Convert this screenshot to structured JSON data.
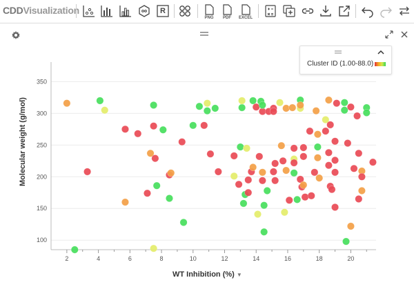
{
  "app": {
    "logo_main": "CDD",
    "logo_sub": "Visualization"
  },
  "toolbar": {
    "png_label": "PNG",
    "pdf_label": "PDF",
    "excel_label": "EXCEL",
    "r_label": "R"
  },
  "legend": {
    "text": "Cluster ID (1.00-88.0)"
  },
  "colors": {
    "red": "#e94a55",
    "orange": "#f3a046",
    "yellow": "#e4ed6a",
    "green": "#46de5c"
  },
  "chart_data": {
    "type": "scatter",
    "xlabel": "WT Inhibition (%)",
    "ylabel": "Molecular weight (g/mol)",
    "xlim": [
      1,
      21.4
    ],
    "ylim": [
      85,
      370
    ],
    "xticks": [
      2,
      4,
      6,
      8,
      10,
      12,
      14,
      16,
      18,
      20
    ],
    "yticks": [
      100,
      150,
      200,
      250,
      300,
      350
    ],
    "grid": true,
    "points": [
      {
        "x": 2.0,
        "y": 316,
        "c": "orange"
      },
      {
        "x": 2.5,
        "y": 85,
        "c": "green"
      },
      {
        "x": 3.3,
        "y": 208,
        "c": "red"
      },
      {
        "x": 4.1,
        "y": 320,
        "c": "green"
      },
      {
        "x": 4.4,
        "y": 305,
        "c": "yellow"
      },
      {
        "x": 5.7,
        "y": 275,
        "c": "red"
      },
      {
        "x": 5.7,
        "y": 160,
        "c": "orange"
      },
      {
        "x": 6.5,
        "y": 268,
        "c": "red"
      },
      {
        "x": 7.1,
        "y": 174,
        "c": "red"
      },
      {
        "x": 7.3,
        "y": 237,
        "c": "orange"
      },
      {
        "x": 7.5,
        "y": 313,
        "c": "green"
      },
      {
        "x": 7.5,
        "y": 280,
        "c": "red"
      },
      {
        "x": 7.6,
        "y": 229,
        "c": "red"
      },
      {
        "x": 7.7,
        "y": 186,
        "c": "green"
      },
      {
        "x": 7.5,
        "y": 87,
        "c": "yellow"
      },
      {
        "x": 8.1,
        "y": 274,
        "c": "green"
      },
      {
        "x": 8.5,
        "y": 203,
        "c": "red"
      },
      {
        "x": 8.6,
        "y": 206,
        "c": "orange"
      },
      {
        "x": 8.5,
        "y": 166,
        "c": "green"
      },
      {
        "x": 9.3,
        "y": 255,
        "c": "red"
      },
      {
        "x": 9.4,
        "y": 128,
        "c": "green"
      },
      {
        "x": 10.0,
        "y": 281,
        "c": "green"
      },
      {
        "x": 10.4,
        "y": 311,
        "c": "green"
      },
      {
        "x": 10.7,
        "y": 281,
        "c": "red"
      },
      {
        "x": 10.9,
        "y": 304,
        "c": "green"
      },
      {
        "x": 10.9,
        "y": 316,
        "c": "yellow"
      },
      {
        "x": 11.1,
        "y": 236,
        "c": "red"
      },
      {
        "x": 11.4,
        "y": 308,
        "c": "green"
      },
      {
        "x": 11.6,
        "y": 208,
        "c": "red"
      },
      {
        "x": 12.6,
        "y": 233,
        "c": "red"
      },
      {
        "x": 12.6,
        "y": 201,
        "c": "yellow"
      },
      {
        "x": 12.9,
        "y": 188,
        "c": "red"
      },
      {
        "x": 13.0,
        "y": 247,
        "c": "green"
      },
      {
        "x": 13.1,
        "y": 309,
        "c": "green"
      },
      {
        "x": 13.1,
        "y": 320,
        "c": "yellow"
      },
      {
        "x": 13.2,
        "y": 158,
        "c": "green"
      },
      {
        "x": 13.3,
        "y": 172,
        "c": "green"
      },
      {
        "x": 13.4,
        "y": 245,
        "c": "yellow"
      },
      {
        "x": 13.5,
        "y": 195,
        "c": "red"
      },
      {
        "x": 13.5,
        "y": 175,
        "c": "red"
      },
      {
        "x": 13.7,
        "y": 208,
        "c": "red"
      },
      {
        "x": 13.8,
        "y": 215,
        "c": "orange"
      },
      {
        "x": 13.8,
        "y": 320,
        "c": "green"
      },
      {
        "x": 14.0,
        "y": 310,
        "c": "red"
      },
      {
        "x": 14.1,
        "y": 141,
        "c": "yellow"
      },
      {
        "x": 14.2,
        "y": 232,
        "c": "red"
      },
      {
        "x": 14.3,
        "y": 319,
        "c": "green"
      },
      {
        "x": 14.4,
        "y": 303,
        "c": "red"
      },
      {
        "x": 14.4,
        "y": 313,
        "c": "green"
      },
      {
        "x": 14.4,
        "y": 207,
        "c": "orange"
      },
      {
        "x": 14.4,
        "y": 194,
        "c": "red"
      },
      {
        "x": 14.5,
        "y": 155,
        "c": "green"
      },
      {
        "x": 14.5,
        "y": 113,
        "c": "green"
      },
      {
        "x": 14.7,
        "y": 178,
        "c": "green"
      },
      {
        "x": 14.8,
        "y": 303,
        "c": "red"
      },
      {
        "x": 15.1,
        "y": 308,
        "c": "red"
      },
      {
        "x": 15.1,
        "y": 303,
        "c": "red"
      },
      {
        "x": 15.1,
        "y": 208,
        "c": "red"
      },
      {
        "x": 15.2,
        "y": 221,
        "c": "red"
      },
      {
        "x": 15.2,
        "y": 194,
        "c": "red"
      },
      {
        "x": 15.5,
        "y": 317,
        "c": "yellow"
      },
      {
        "x": 15.6,
        "y": 249,
        "c": "orange"
      },
      {
        "x": 15.7,
        "y": 225,
        "c": "red"
      },
      {
        "x": 15.8,
        "y": 144,
        "c": "yellow"
      },
      {
        "x": 15.9,
        "y": 308,
        "c": "orange"
      },
      {
        "x": 15.9,
        "y": 210,
        "c": "orange"
      },
      {
        "x": 16.1,
        "y": 163,
        "c": "red"
      },
      {
        "x": 16.3,
        "y": 309,
        "c": "orange"
      },
      {
        "x": 16.4,
        "y": 245,
        "c": "red"
      },
      {
        "x": 16.4,
        "y": 228,
        "c": "yellow"
      },
      {
        "x": 16.4,
        "y": 222,
        "c": "red"
      },
      {
        "x": 16.4,
        "y": 206,
        "c": "green"
      },
      {
        "x": 16.6,
        "y": 164,
        "c": "green"
      },
      {
        "x": 16.8,
        "y": 321,
        "c": "green"
      },
      {
        "x": 16.8,
        "y": 308,
        "c": "yellow"
      },
      {
        "x": 16.8,
        "y": 313,
        "c": "orange"
      },
      {
        "x": 16.8,
        "y": 196,
        "c": "red"
      },
      {
        "x": 16.9,
        "y": 184,
        "c": "red"
      },
      {
        "x": 17.0,
        "y": 246,
        "c": "red"
      },
      {
        "x": 17.0,
        "y": 232,
        "c": "red"
      },
      {
        "x": 17.0,
        "y": 187,
        "c": "orange"
      },
      {
        "x": 17.1,
        "y": 168,
        "c": "red"
      },
      {
        "x": 17.4,
        "y": 272,
        "c": "red"
      },
      {
        "x": 17.5,
        "y": 170,
        "c": "red"
      },
      {
        "x": 17.7,
        "y": 207,
        "c": "red"
      },
      {
        "x": 17.8,
        "y": 304,
        "c": "orange"
      },
      {
        "x": 17.9,
        "y": 267,
        "c": "orange"
      },
      {
        "x": 17.9,
        "y": 247,
        "c": "green"
      },
      {
        "x": 17.9,
        "y": 230,
        "c": "orange"
      },
      {
        "x": 18.0,
        "y": 198,
        "c": "orange"
      },
      {
        "x": 18.4,
        "y": 290,
        "c": "yellow"
      },
      {
        "x": 18.4,
        "y": 272,
        "c": "red"
      },
      {
        "x": 18.6,
        "y": 321,
        "c": "orange"
      },
      {
        "x": 18.6,
        "y": 238,
        "c": "red"
      },
      {
        "x": 18.6,
        "y": 218,
        "c": "red"
      },
      {
        "x": 18.7,
        "y": 282,
        "c": "red"
      },
      {
        "x": 18.7,
        "y": 185,
        "c": "red"
      },
      {
        "x": 18.8,
        "y": 180,
        "c": "red"
      },
      {
        "x": 19.0,
        "y": 256,
        "c": "red"
      },
      {
        "x": 19.0,
        "y": 226,
        "c": "red"
      },
      {
        "x": 19.0,
        "y": 207,
        "c": "red"
      },
      {
        "x": 19.0,
        "y": 152,
        "c": "red"
      },
      {
        "x": 19.1,
        "y": 316,
        "c": "red"
      },
      {
        "x": 19.6,
        "y": 317,
        "c": "green"
      },
      {
        "x": 19.6,
        "y": 305,
        "c": "green"
      },
      {
        "x": 19.7,
        "y": 98,
        "c": "green"
      },
      {
        "x": 19.8,
        "y": 253,
        "c": "red"
      },
      {
        "x": 20.0,
        "y": 310,
        "c": "red"
      },
      {
        "x": 20.0,
        "y": 122,
        "c": "orange"
      },
      {
        "x": 20.2,
        "y": 213,
        "c": "red"
      },
      {
        "x": 20.4,
        "y": 296,
        "c": "red"
      },
      {
        "x": 20.5,
        "y": 237,
        "c": "red"
      },
      {
        "x": 20.5,
        "y": 165,
        "c": "red"
      },
      {
        "x": 20.7,
        "y": 209,
        "c": "orange"
      },
      {
        "x": 20.7,
        "y": 200,
        "c": "red"
      },
      {
        "x": 20.7,
        "y": 178,
        "c": "orange"
      },
      {
        "x": 21.0,
        "y": 309,
        "c": "green"
      },
      {
        "x": 21.0,
        "y": 301,
        "c": "green"
      },
      {
        "x": 21.4,
        "y": 223,
        "c": "red"
      }
    ]
  }
}
